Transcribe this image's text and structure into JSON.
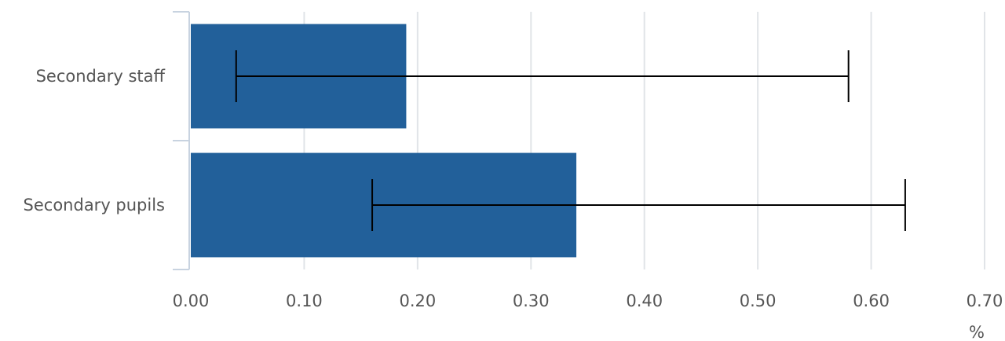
{
  "chart_data": {
    "type": "bar",
    "orientation": "horizontal",
    "categories": [
      "Secondary staff",
      "Secondary pupils"
    ],
    "values": [
      0.19,
      0.34
    ],
    "error_low": [
      0.04,
      0.16
    ],
    "error_high": [
      0.58,
      0.63
    ],
    "x_ticks": [
      "0.00",
      "0.10",
      "0.20",
      "0.30",
      "0.40",
      "0.50",
      "0.60",
      "0.70"
    ],
    "xlim": [
      0,
      0.7
    ],
    "unit_label": "%",
    "grid": "vertical",
    "bar_color": "#22609A",
    "error_bar_color": "#000000",
    "grid_color": "#E1E4E8",
    "axis_color": "#C8D3E0",
    "text_color": "#555555"
  }
}
